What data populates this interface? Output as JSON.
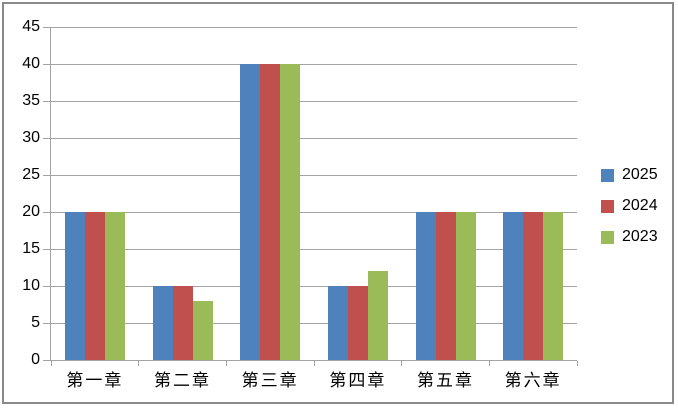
{
  "chart_data": {
    "type": "bar",
    "title": "",
    "categories": [
      "第一章",
      "第二章",
      "第三章",
      "第四章",
      "第五章",
      "第六章"
    ],
    "series": [
      {
        "name": "2025",
        "color": "#4F81BD",
        "values": [
          20,
          10,
          40,
          10,
          20,
          20
        ]
      },
      {
        "name": "2024",
        "color": "#C0504D",
        "values": [
          20,
          10,
          40,
          10,
          20,
          20
        ]
      },
      {
        "name": "2023",
        "color": "#9BBB59",
        "values": [
          20,
          8,
          40,
          12,
          20,
          20
        ]
      }
    ],
    "ylim": [
      0,
      45
    ],
    "ytick_step": 5,
    "yticks": [
      0,
      5,
      10,
      15,
      20,
      25,
      30,
      35,
      40,
      45
    ],
    "grid": true,
    "legend_position": "right",
    "xlabel": "",
    "ylabel": ""
  },
  "colors": {
    "gridline": "#A3A3A3",
    "axis_text": "#000000",
    "background": "#FFFFFF",
    "frame_border": "#898989"
  }
}
